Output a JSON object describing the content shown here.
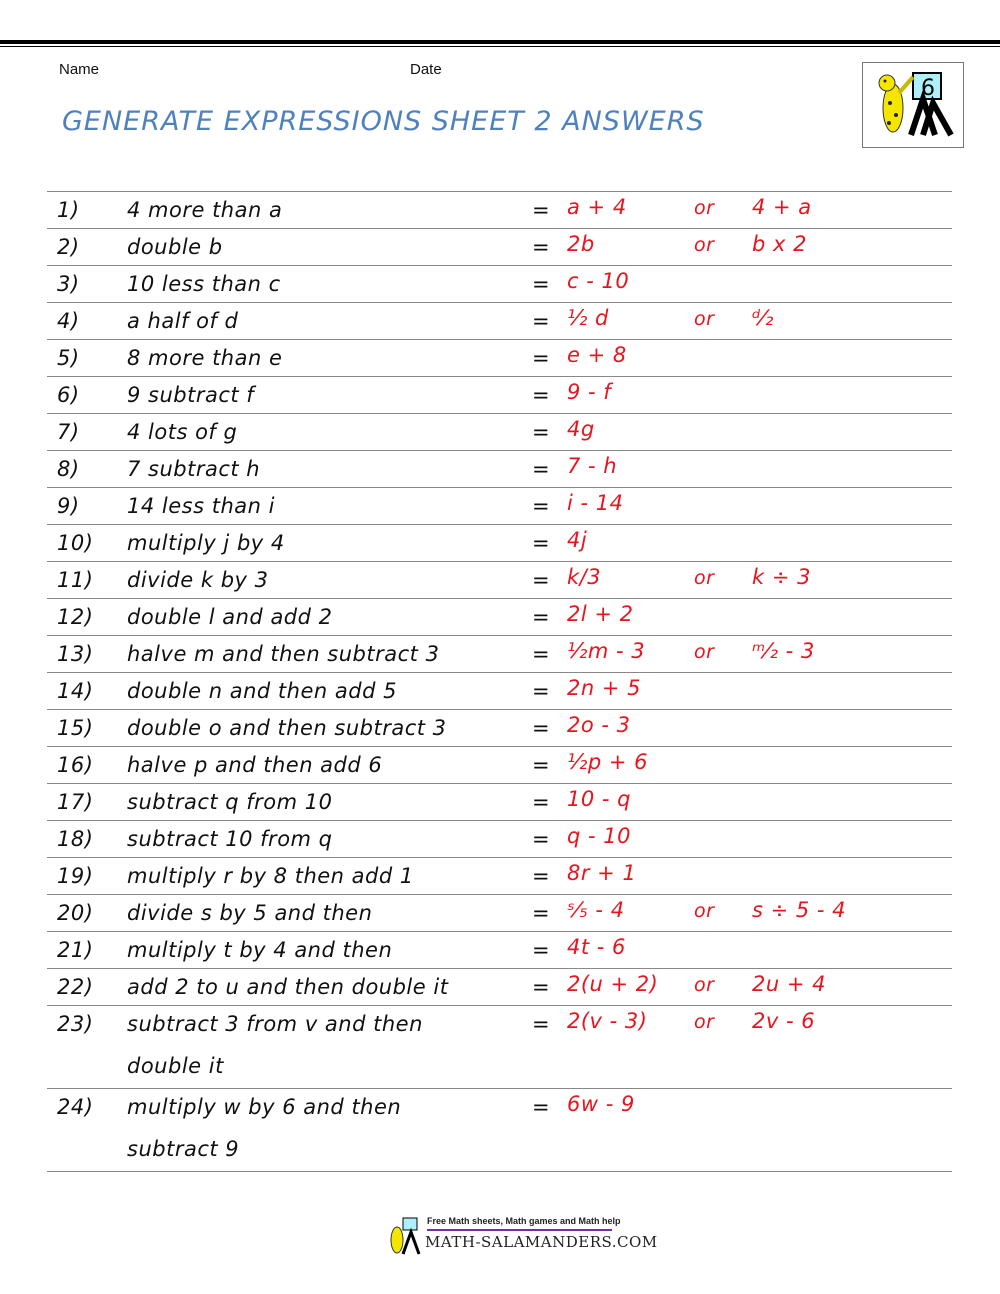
{
  "header": {
    "name_label": "Name",
    "date_label": "Date",
    "title": "GENERATE EXPRESSIONS SHEET 2 ANSWERS",
    "logo_grade": "6"
  },
  "rows": [
    {
      "num": "1)",
      "q": "4 more than a",
      "ans": "a + 4",
      "or": "or",
      "alt": "4 + a"
    },
    {
      "num": "2)",
      "q": "double b",
      "ans": "2b",
      "or": "or",
      "alt": "b x 2"
    },
    {
      "num": "3)",
      "q": "10 less than c",
      "ans": "c - 10",
      "or": "",
      "alt": ""
    },
    {
      "num": "4)",
      "q": "a half of d",
      "ans": "½ d",
      "or": "or",
      "alt": "ᵈ⁄₂"
    },
    {
      "num": "5)",
      "q": "8 more than e",
      "ans": "e + 8",
      "or": "",
      "alt": ""
    },
    {
      "num": "6)",
      "q": "9 subtract f",
      "ans": "9 - f",
      "or": "",
      "alt": ""
    },
    {
      "num": "7)",
      "q": "4 lots of g",
      "ans": "4g",
      "or": "",
      "alt": ""
    },
    {
      "num": "8)",
      "q": "7 subtract h",
      "ans": "7 - h",
      "or": "",
      "alt": ""
    },
    {
      "num": "9)",
      "q": "14 less than i",
      "ans": "i - 14",
      "or": "",
      "alt": ""
    },
    {
      "num": "10)",
      "q": "multiply j by 4",
      "ans": "4j",
      "or": "",
      "alt": ""
    },
    {
      "num": "11)",
      "q": "divide k by 3",
      "ans": "k/3",
      "or": "or",
      "alt": "k ÷ 3"
    },
    {
      "num": "12)",
      "q": "double l and add 2",
      "ans": "2l + 2",
      "or": "",
      "alt": ""
    },
    {
      "num": "13)",
      "q": "halve m and then subtract 3",
      "ans": "½m - 3",
      "or": "or",
      "alt": "ᵐ⁄₂ - 3"
    },
    {
      "num": "14)",
      "q": "double n and then add 5",
      "ans": "2n + 5",
      "or": "",
      "alt": ""
    },
    {
      "num": "15)",
      "q": "double o and then subtract 3",
      "ans": "2o - 3",
      "or": "",
      "alt": ""
    },
    {
      "num": "16)",
      "q": "halve p and then add 6",
      "ans": "½p + 6",
      "or": "",
      "alt": ""
    },
    {
      "num": "17)",
      "q": "subtract q from 10",
      "ans": "10 - q",
      "or": "",
      "alt": ""
    },
    {
      "num": "18)",
      "q": "subtract 10 from q",
      "ans": "q - 10",
      "or": "",
      "alt": ""
    },
    {
      "num": "19)",
      "q": "multiply r by 8 then add 1",
      "ans": "8r + 1",
      "or": "",
      "alt": ""
    },
    {
      "num": "20)",
      "q": "divide s by 5 and then",
      "ans": "ˢ⁄₅ - 4",
      "or": "or",
      "alt": "s ÷ 5 - 4"
    },
    {
      "num": "21)",
      "q": "multiply t by 4 and then",
      "ans": "4t - 6",
      "or": "",
      "alt": ""
    },
    {
      "num": "22)",
      "q": "add 2 to u and then double it",
      "ans": "2(u + 2)",
      "or": "or",
      "alt": "2u + 4"
    },
    {
      "num": "23)",
      "q": "subtract 3 from v and then double it",
      "ans": "2(v - 3)",
      "or": "or",
      "alt": "2v - 6"
    },
    {
      "num": "24)",
      "q": "multiply w by 6 and then subtract 9",
      "ans": "6w - 9",
      "or": "",
      "alt": ""
    }
  ],
  "equals": "=",
  "footer": {
    "tagline": "Free Math sheets, Math games and Math help",
    "site": "MATH-SALAMANDERS.COM"
  }
}
